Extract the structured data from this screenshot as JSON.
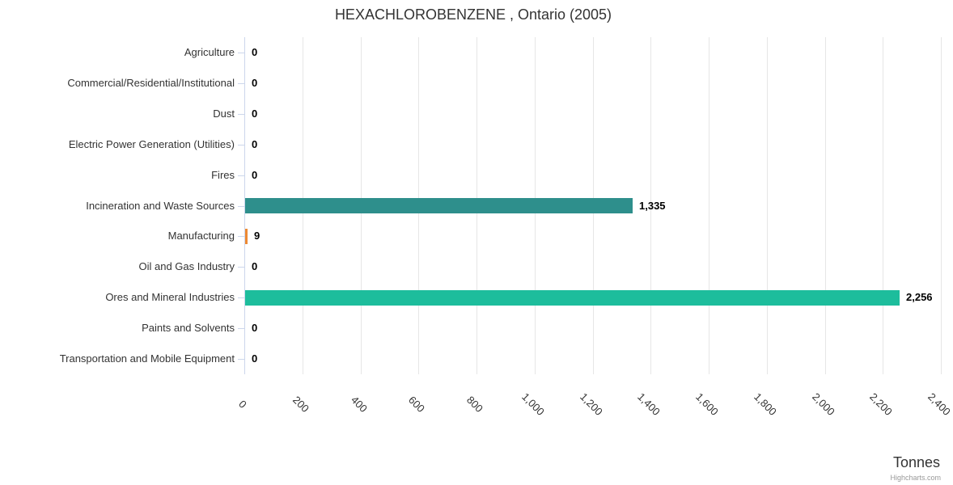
{
  "header": {
    "title": "HEXACHLOROBENZENE , Ontario (2005)"
  },
  "chart_data": {
    "type": "bar",
    "orientation": "horizontal",
    "title": "HEXACHLOROBENZENE , Ontario (2005)",
    "categories": [
      "Agriculture",
      "Commercial/Residential/Institutional",
      "Dust",
      "Electric Power Generation (Utilities)",
      "Fires",
      "Incineration and Waste Sources",
      "Manufacturing",
      "Oil and Gas Industry",
      "Ores and Mineral Industries",
      "Paints and Solvents",
      "Transportation and Mobile Equipment"
    ],
    "values": [
      0,
      0,
      0,
      0,
      0,
      1335,
      9,
      0,
      2256,
      0,
      0
    ],
    "value_labels": [
      "0",
      "0",
      "0",
      "0",
      "0",
      "1,335",
      "9",
      "0",
      "2,256",
      "0",
      "0"
    ],
    "point_colors": [
      "",
      "",
      "",
      "",
      "",
      "#2E8F8C",
      "#ED8A33",
      "",
      "#1DBD9C",
      "",
      ""
    ],
    "xlabel": "Tonnes",
    "ylabel": "",
    "xlim": [
      0,
      2400
    ],
    "x_tick_values": [
      0,
      200,
      400,
      600,
      800,
      1000,
      1200,
      1400,
      1600,
      1800,
      2000,
      2200,
      2400
    ],
    "x_tick_labels": [
      "0",
      "200",
      "400",
      "600",
      "800",
      "1,000",
      "1,200",
      "1,400",
      "1,600",
      "1,800",
      "2,000",
      "2,200",
      "2,400"
    ],
    "grid": true,
    "legend": false,
    "colors": {
      "axis_line": "#ccd6eb",
      "grid_line": "#e6e6e6",
      "category_tick": "#ccd6eb",
      "axis_label_text": "#333333",
      "category_label_text": "#333333",
      "data_label_text": "#000000",
      "title_text": "#333333",
      "credits_text": "#999999"
    }
  },
  "footer": {
    "axis_title": "Tonnes",
    "credits": "Highcharts.com"
  }
}
